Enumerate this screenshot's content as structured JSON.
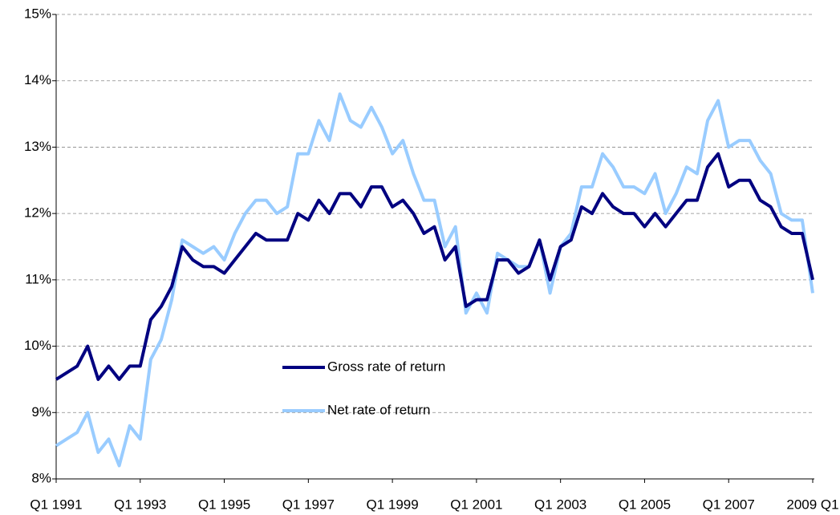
{
  "chart_data": {
    "type": "line",
    "categories": [
      "Q1 1991",
      null,
      null,
      null,
      null,
      null,
      null,
      null,
      "Q1 1993",
      null,
      null,
      null,
      null,
      null,
      null,
      null,
      "Q1 1995",
      null,
      null,
      null,
      null,
      null,
      null,
      null,
      "Q1 1997",
      null,
      null,
      null,
      null,
      null,
      null,
      null,
      "Q1 1999",
      null,
      null,
      null,
      null,
      null,
      null,
      null,
      "Q1 2001",
      null,
      null,
      null,
      null,
      null,
      null,
      null,
      "Q1 2003",
      null,
      null,
      null,
      null,
      null,
      null,
      null,
      "Q1 2005",
      null,
      null,
      null,
      null,
      null,
      null,
      null,
      "Q1 2007",
      null,
      null,
      null,
      null,
      null,
      null,
      null,
      "2009 Q1"
    ],
    "series": [
      {
        "name": "Gross rate of return",
        "color": "#000080",
        "values": [
          9.5,
          9.6,
          9.7,
          10.0,
          9.5,
          9.7,
          9.5,
          9.7,
          9.7,
          10.4,
          10.6,
          10.9,
          11.5,
          11.3,
          11.2,
          11.2,
          11.1,
          11.3,
          11.5,
          11.7,
          11.6,
          11.6,
          11.6,
          12.0,
          11.9,
          12.2,
          12.0,
          12.3,
          12.3,
          12.1,
          12.4,
          12.4,
          12.1,
          12.2,
          12.0,
          11.7,
          11.8,
          11.3,
          11.5,
          10.6,
          10.7,
          10.7,
          11.3,
          11.3,
          11.1,
          11.2,
          11.6,
          11.0,
          11.5,
          11.6,
          12.1,
          12.0,
          12.3,
          12.1,
          12.0,
          12.0,
          11.8,
          12.0,
          11.8,
          12.0,
          12.2,
          12.2,
          12.7,
          12.9,
          12.4,
          12.5,
          12.5,
          12.2,
          12.1,
          11.8,
          11.7,
          11.7,
          11.0
        ]
      },
      {
        "name": "Net rate of return",
        "color": "#99ccff",
        "values": [
          8.5,
          8.6,
          8.7,
          9.0,
          8.4,
          8.6,
          8.2,
          8.8,
          8.6,
          9.8,
          10.1,
          10.7,
          11.6,
          11.5,
          11.4,
          11.5,
          11.3,
          11.7,
          12.0,
          12.2,
          12.2,
          12.0,
          12.1,
          12.9,
          12.9,
          13.4,
          13.1,
          13.8,
          13.4,
          13.3,
          13.6,
          13.3,
          12.9,
          13.1,
          12.6,
          12.2,
          12.2,
          11.5,
          11.8,
          10.5,
          10.8,
          10.5,
          11.4,
          11.3,
          11.2,
          11.2,
          11.6,
          10.8,
          11.5,
          11.7,
          12.4,
          12.4,
          12.9,
          12.7,
          12.4,
          12.4,
          12.3,
          12.6,
          12.0,
          12.3,
          12.7,
          12.6,
          13.4,
          13.7,
          13.0,
          13.1,
          13.1,
          12.8,
          12.6,
          12.0,
          11.9,
          11.9,
          10.8
        ]
      }
    ],
    "ylim": [
      8,
      15
    ],
    "yticks": [
      {
        "value": 8,
        "label": "8%"
      },
      {
        "value": 9,
        "label": "9%"
      },
      {
        "value": 10,
        "label": "10%"
      },
      {
        "value": 11,
        "label": "11%"
      },
      {
        "value": 12,
        "label": "12%"
      },
      {
        "value": 13,
        "label": "13%"
      },
      {
        "value": 14,
        "label": "14%"
      },
      {
        "value": 15,
        "label": "15%"
      }
    ],
    "grid": true
  }
}
